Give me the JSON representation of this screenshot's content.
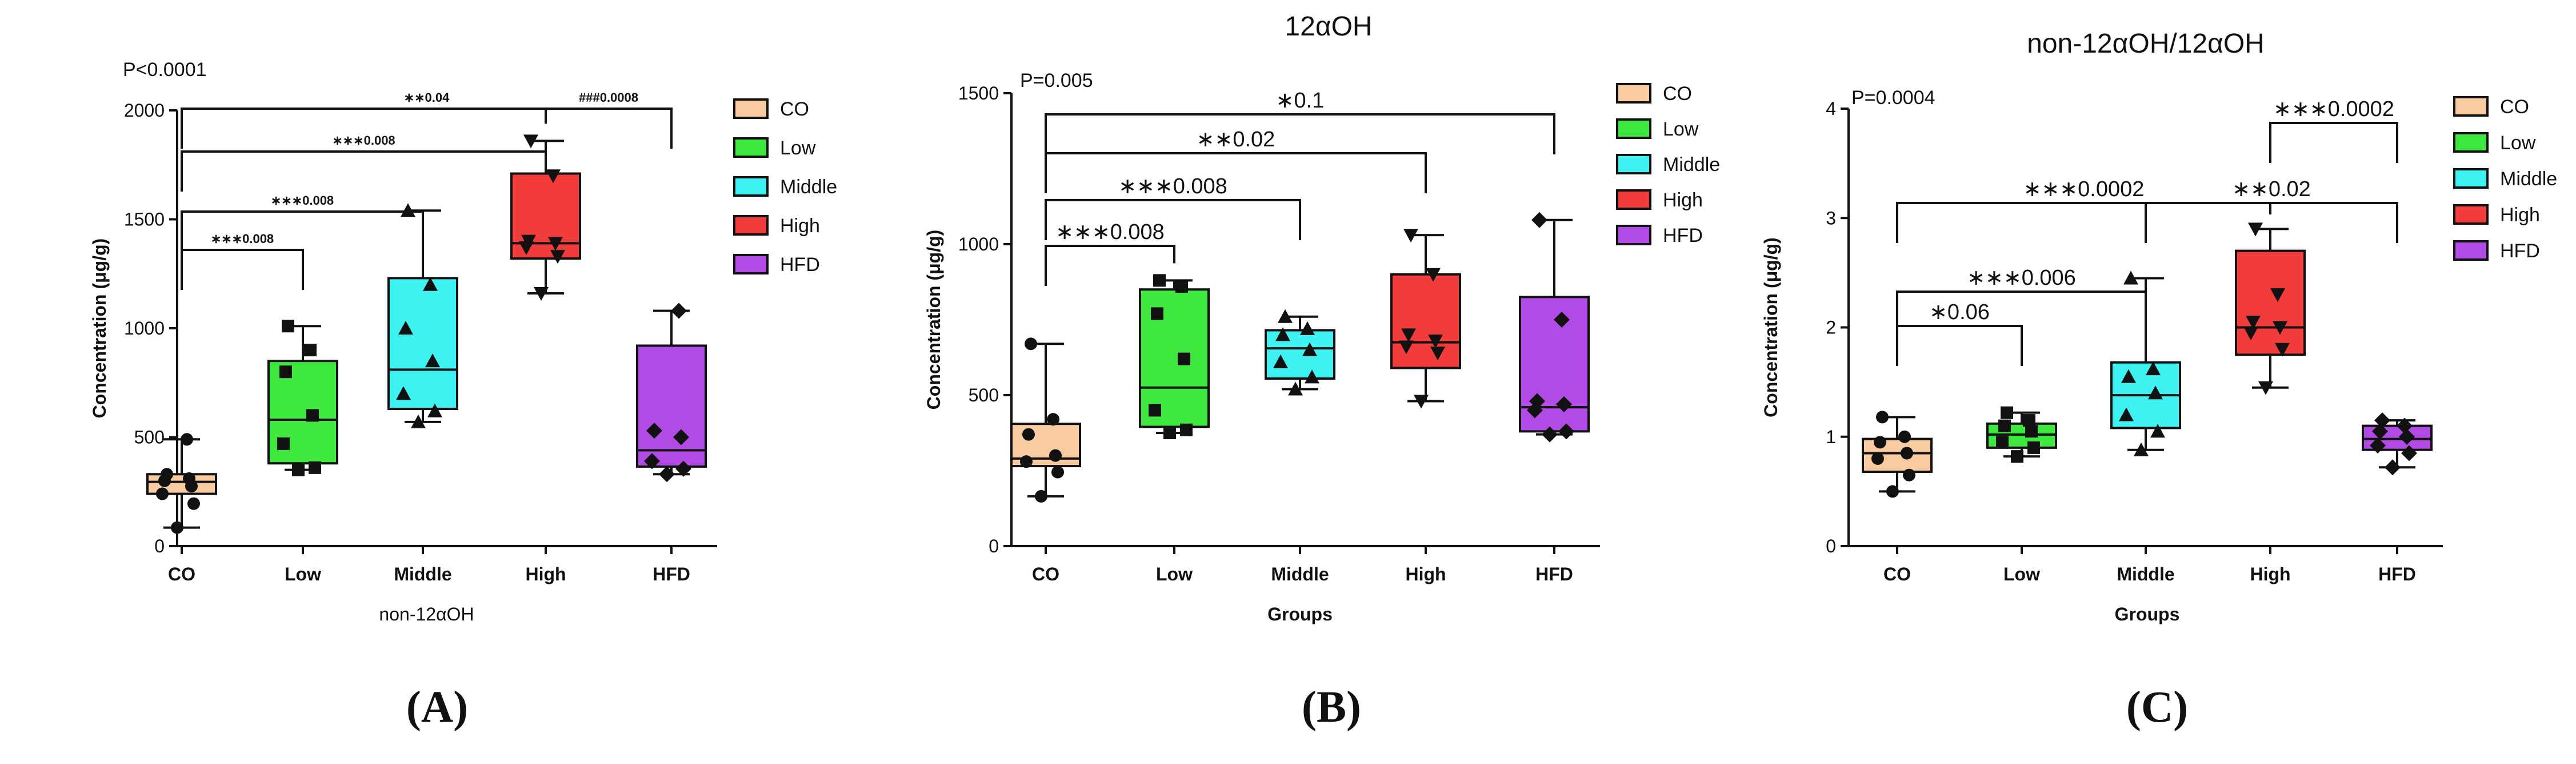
{
  "panel_labels": [
    "(A)",
    "(B)",
    "(C)"
  ],
  "legend_items": [
    "CO",
    "Low",
    "Middle",
    "High",
    "HFD"
  ],
  "colors": {
    "CO": "#f8cba0",
    "Low": "#3fe83f",
    "Middle": "#3ff2f2",
    "High": "#f23b3b",
    "HFD": "#b24ae6",
    "ink": "#111111"
  },
  "chart_data": [
    {
      "type": "box",
      "title": "",
      "xlabel": "non-12αOH",
      "ylabel": "Concentration (μg/g)",
      "ylim": [
        0,
        2000
      ],
      "yticks": [
        0,
        500,
        1000,
        1500,
        2000
      ],
      "categories": [
        "CO",
        "Low",
        "Middle",
        "High",
        "HFD"
      ],
      "p_value": "P<0.0001",
      "boxes": [
        {
          "name": "CO",
          "min": 85,
          "q1": 240,
          "median": 295,
          "q3": 330,
          "max": 490,
          "points": [
            85,
            195,
            240,
            275,
            300,
            310,
            330,
            490
          ],
          "marker": "circle"
        },
        {
          "name": "Low",
          "min": 350,
          "q1": 380,
          "median": 580,
          "q3": 850,
          "max": 1010,
          "points": [
            350,
            360,
            470,
            600,
            800,
            900,
            1010
          ],
          "marker": "square"
        },
        {
          "name": "Middle",
          "min": 570,
          "q1": 630,
          "median": 810,
          "q3": 1230,
          "max": 1540,
          "points": [
            570,
            620,
            700,
            850,
            1000,
            1200,
            1540
          ],
          "marker": "triangle-up"
        },
        {
          "name": "High",
          "min": 1160,
          "q1": 1320,
          "median": 1390,
          "q3": 1710,
          "max": 1860,
          "points": [
            1160,
            1330,
            1370,
            1390,
            1400,
            1700,
            1860
          ],
          "marker": "triangle-down"
        },
        {
          "name": "HFD",
          "min": 330,
          "q1": 365,
          "median": 440,
          "q3": 920,
          "max": 1080,
          "points": [
            330,
            355,
            390,
            500,
            530,
            1080
          ],
          "marker": "diamond"
        }
      ],
      "brackets": [
        {
          "from": "CO",
          "to": "Low",
          "label": "∗∗∗0.008"
        },
        {
          "from": "CO",
          "to": "Middle",
          "label": "∗∗∗0.008"
        },
        {
          "from": "CO",
          "to": "High",
          "label": "∗∗∗0.008"
        },
        {
          "from": "CO",
          "to": "HFD",
          "label": "∗∗0.04"
        },
        {
          "from": "High",
          "to": "HFD",
          "label": "###0.0008"
        }
      ]
    },
    {
      "type": "box",
      "title": "12αOH",
      "xlabel": "Groups",
      "ylabel": "Concentration (μg/g)",
      "ylim": [
        0,
        1500
      ],
      "yticks": [
        0,
        500,
        1000,
        1500
      ],
      "categories": [
        "CO",
        "Low",
        "Middle",
        "High",
        "HFD"
      ],
      "p_value": "P=0.005",
      "boxes": [
        {
          "name": "CO",
          "min": 165,
          "q1": 265,
          "median": 290,
          "q3": 405,
          "max": 670,
          "points": [
            165,
            245,
            280,
            300,
            370,
            420,
            670
          ],
          "marker": "circle"
        },
        {
          "name": "Low",
          "min": 375,
          "q1": 395,
          "median": 525,
          "q3": 850,
          "max": 880,
          "points": [
            375,
            385,
            450,
            620,
            770,
            860,
            880
          ],
          "marker": "square"
        },
        {
          "name": "Middle",
          "min": 520,
          "q1": 555,
          "median": 655,
          "q3": 715,
          "max": 760,
          "points": [
            520,
            560,
            610,
            650,
            700,
            720,
            760
          ],
          "marker": "triangle-up"
        },
        {
          "name": "High",
          "min": 480,
          "q1": 590,
          "median": 675,
          "q3": 900,
          "max": 1030,
          "points": [
            480,
            640,
            660,
            680,
            700,
            900,
            1030
          ],
          "marker": "triangle-down"
        },
        {
          "name": "HFD",
          "min": 370,
          "q1": 380,
          "median": 460,
          "q3": 825,
          "max": 1080,
          "points": [
            370,
            380,
            450,
            470,
            480,
            750,
            1080
          ],
          "marker": "diamond"
        }
      ],
      "brackets": [
        {
          "from": "CO",
          "to": "Low",
          "label": "∗∗∗0.008"
        },
        {
          "from": "CO",
          "to": "Middle",
          "label": "∗∗∗0.008"
        },
        {
          "from": "CO",
          "to": "High",
          "label": "∗∗0.02"
        },
        {
          "from": "CO",
          "to": "HFD",
          "label": "∗0.1"
        }
      ]
    },
    {
      "type": "box",
      "title": "non-12αOH/12αOH",
      "xlabel": "Groups",
      "ylabel": "Concentration (μg/g)",
      "ylim": [
        0,
        4
      ],
      "yticks": [
        0,
        1,
        2,
        3,
        4
      ],
      "categories": [
        "CO",
        "Low",
        "Middle",
        "High",
        "HFD"
      ],
      "p_value": "P=0.0004",
      "boxes": [
        {
          "name": "CO",
          "min": 0.5,
          "q1": 0.68,
          "median": 0.85,
          "q3": 0.98,
          "max": 1.18,
          "points": [
            0.5,
            0.65,
            0.8,
            0.85,
            0.95,
            1.0,
            1.18
          ],
          "marker": "circle"
        },
        {
          "name": "Low",
          "min": 0.82,
          "q1": 0.9,
          "median": 1.02,
          "q3": 1.12,
          "max": 1.22,
          "points": [
            0.82,
            0.9,
            0.95,
            1.05,
            1.1,
            1.15,
            1.22
          ],
          "marker": "square"
        },
        {
          "name": "Middle",
          "min": 0.88,
          "q1": 1.08,
          "median": 1.38,
          "q3": 1.68,
          "max": 2.45,
          "points": [
            0.88,
            1.05,
            1.2,
            1.4,
            1.55,
            1.62,
            2.45
          ],
          "marker": "triangle-up"
        },
        {
          "name": "High",
          "min": 1.45,
          "q1": 1.75,
          "median": 2.0,
          "q3": 2.7,
          "max": 2.9,
          "points": [
            1.45,
            1.8,
            1.95,
            2.0,
            2.05,
            2.3,
            2.9
          ],
          "marker": "triangle-down"
        },
        {
          "name": "HFD",
          "min": 0.72,
          "q1": 0.88,
          "median": 0.98,
          "q3": 1.1,
          "max": 1.15,
          "points": [
            0.72,
            0.85,
            0.92,
            1.0,
            1.05,
            1.1,
            1.15
          ],
          "marker": "diamond"
        }
      ],
      "brackets": [
        {
          "from": "CO",
          "to": "Low",
          "label": "∗0.06"
        },
        {
          "from": "CO",
          "to": "Middle",
          "label": "∗∗∗0.006"
        },
        {
          "from": "CO",
          "to": "High",
          "label": "∗∗∗0.0002"
        },
        {
          "from": "Middle",
          "to": "HFD",
          "label": "∗∗0.02"
        },
        {
          "from": "High",
          "to": "HFD",
          "label": "∗∗∗0.0002"
        }
      ]
    }
  ]
}
